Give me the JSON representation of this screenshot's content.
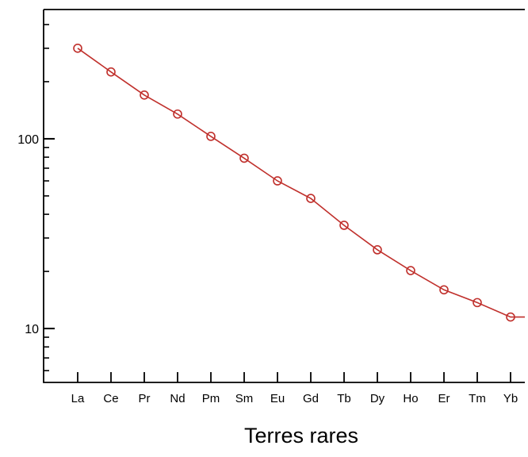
{
  "chart_data": {
    "type": "line",
    "xlabel": "Terres rares",
    "ylabel": "",
    "yscale": "log",
    "ylim": [
      5.2,
      480
    ],
    "ytick_labels": [
      "10",
      "100"
    ],
    "categories": [
      "La",
      "Ce",
      "Pr",
      "Nd",
      "Pm",
      "Sm",
      "Eu",
      "Gd",
      "Tb",
      "Dy",
      "Ho",
      "Er",
      "Tm",
      "Yb"
    ],
    "series": [
      {
        "values": [
          300,
          225,
          170,
          135,
          103,
          79,
          60,
          48.5,
          35,
          26,
          20.2,
          16,
          13.7,
          11.5
        ],
        "color": "#c0302c",
        "marker": "open-circle"
      }
    ],
    "grid": false,
    "legend": "none"
  }
}
